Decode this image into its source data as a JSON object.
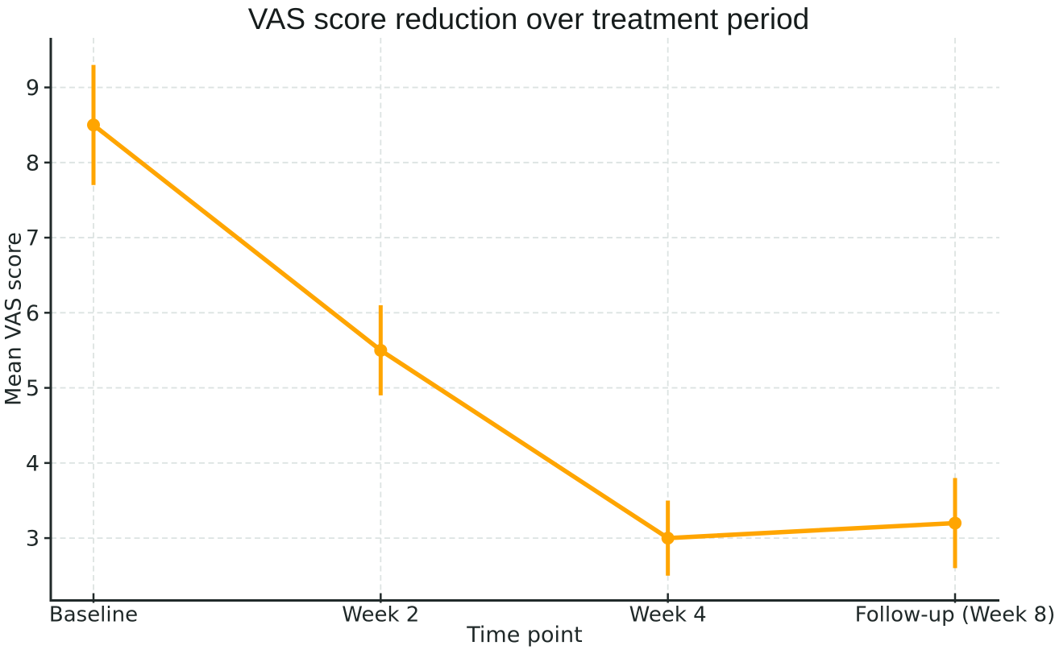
{
  "chart_data": {
    "type": "line",
    "title": "VAS score reduction over treatment period",
    "xlabel": "Time point",
    "ylabel": "Mean VAS score",
    "categories": [
      "Baseline",
      "Week 2",
      "Week 4",
      "Follow-up (Week 8)"
    ],
    "series": [
      {
        "name": "Mean VAS score",
        "values": [
          8.5,
          5.5,
          3.0,
          3.2
        ],
        "error": [
          0.8,
          0.6,
          0.5,
          0.6
        ],
        "error_low": [
          7.7,
          4.9,
          2.5,
          2.6
        ],
        "error_high": [
          9.3,
          6.1,
          3.5,
          3.8
        ]
      }
    ],
    "yticks": [
      3,
      4,
      5,
      6,
      7,
      8,
      9
    ],
    "ylim": [
      2.17,
      9.66
    ],
    "grid": {
      "horizontal": true,
      "vertical": true,
      "style": "dashed"
    },
    "legend": "none",
    "marker": "circle"
  },
  "colors": {
    "line": "#FFA500",
    "marker": "#FFA500",
    "error_bar": "#FFA500",
    "grid": "#dce3e2",
    "spine": "#212a2a",
    "tick_text": "#1f2828",
    "background": "#ffffff"
  }
}
